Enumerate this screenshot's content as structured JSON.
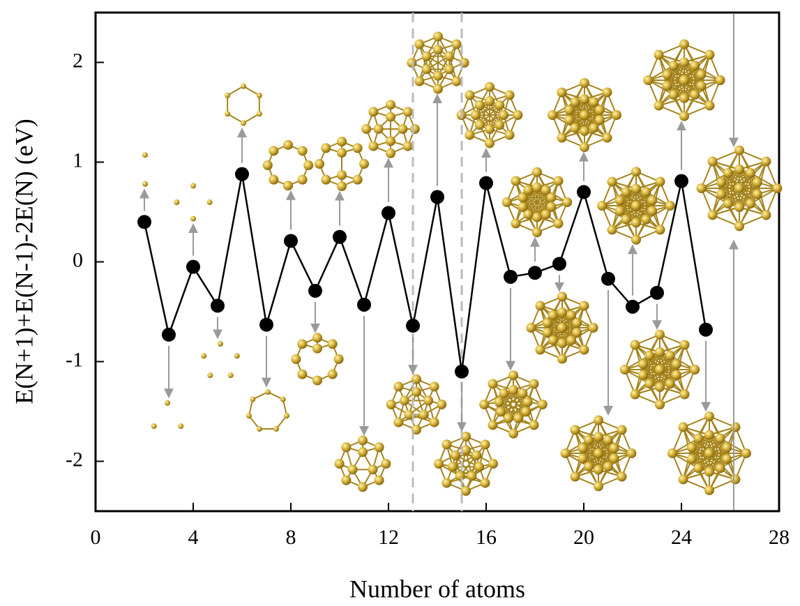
{
  "chart_data": {
    "type": "line",
    "x_label": "Number of atoms",
    "y_label": "E(N+1)+E(N-1)-2E(N) (eV)",
    "x": [
      2,
      3,
      4,
      5,
      6,
      7,
      8,
      9,
      10,
      11,
      12,
      13,
      14,
      15,
      16,
      17,
      18,
      19,
      20,
      21,
      22,
      23,
      24,
      25
    ],
    "series": [
      {
        "color": "#000000",
        "values": [
          0.4,
          -0.73,
          -0.05,
          -0.44,
          0.88,
          -0.63,
          0.21,
          -0.29,
          0.25,
          -0.43,
          0.49,
          -0.64,
          0.65,
          -1.1,
          0.79,
          -0.15,
          -0.11,
          -0.02,
          0.7,
          -0.17,
          -0.45,
          -0.31,
          0.81,
          -0.68
        ]
      }
    ],
    "xlim": [
      0,
      28
    ],
    "xticks": [
      0,
      4,
      8,
      12,
      16,
      20,
      24,
      28
    ],
    "ylim": [
      -2.5,
      2.5
    ],
    "yticks": [
      -2,
      -1,
      0,
      1,
      2
    ],
    "reference_lines_x": [
      13,
      15
    ]
  }
}
